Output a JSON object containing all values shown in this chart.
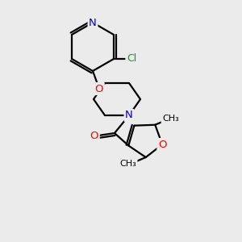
{
  "background_color": "#ebebeb",
  "atom_colors": {
    "N": "#0000cc",
    "O": "#ff0000",
    "Cl": "#00aa00",
    "C": "#000000"
  },
  "bond_color": "#000000",
  "bond_lw": 1.6,
  "font_size": 9.5
}
